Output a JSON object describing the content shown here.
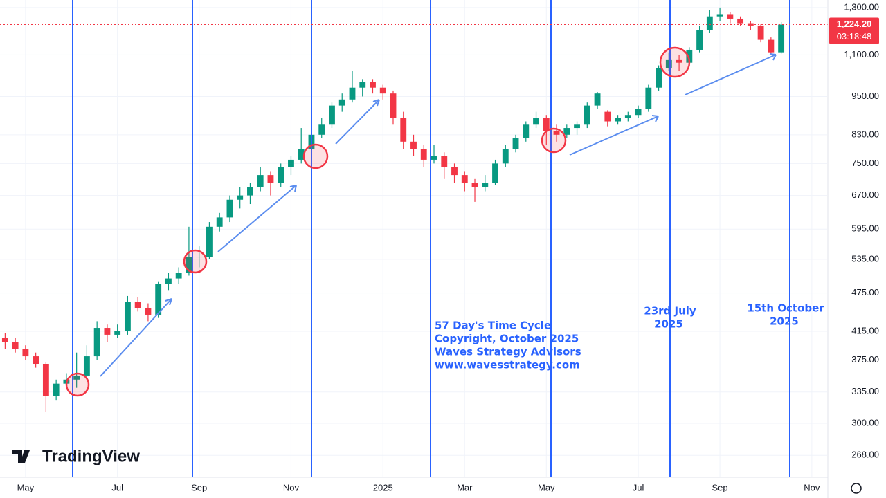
{
  "chart_data": {
    "type": "candlestick",
    "categories": [
      null,
      null,
      "May",
      null,
      null,
      null,
      null,
      null,
      null,
      null,
      null,
      "Jul",
      null,
      null,
      null,
      null,
      null,
      null,
      null,
      "Sep",
      null,
      null,
      null,
      null,
      null,
      null,
      null,
      null,
      "Nov",
      null,
      null,
      null,
      null,
      null,
      null,
      null,
      null,
      "2025",
      null,
      null,
      null,
      null,
      null,
      null,
      null,
      "Mar",
      null,
      null,
      null,
      null,
      null,
      null,
      null,
      "May",
      null,
      null,
      null,
      null,
      null,
      null,
      null,
      null,
      "Jul",
      null,
      null,
      null,
      null,
      null,
      null,
      null,
      "Sep",
      null,
      null,
      null,
      null,
      null,
      null,
      null,
      null,
      "Nov",
      null
    ],
    "candles": [
      [
        405,
        412,
        390,
        400
      ],
      [
        400,
        405,
        385,
        390
      ],
      [
        390,
        395,
        375,
        380
      ],
      [
        380,
        385,
        365,
        370
      ],
      [
        370,
        372,
        312,
        330
      ],
      [
        330,
        350,
        325,
        345
      ],
      [
        345,
        358,
        338,
        350
      ],
      [
        350,
        385,
        340,
        355
      ],
      [
        355,
        395,
        350,
        380
      ],
      [
        380,
        430,
        375,
        420
      ],
      [
        420,
        425,
        400,
        410
      ],
      [
        410,
        425,
        405,
        415
      ],
      [
        415,
        470,
        410,
        460
      ],
      [
        460,
        468,
        445,
        450
      ],
      [
        450,
        458,
        430,
        440
      ],
      [
        440,
        495,
        435,
        490
      ],
      [
        490,
        510,
        480,
        500
      ],
      [
        500,
        520,
        490,
        510
      ],
      [
        510,
        600,
        505,
        540
      ],
      [
        540,
        560,
        520,
        540
      ],
      [
        540,
        610,
        535,
        600
      ],
      [
        600,
        630,
        590,
        620
      ],
      [
        620,
        670,
        610,
        660
      ],
      [
        660,
        690,
        640,
        670
      ],
      [
        670,
        700,
        650,
        690
      ],
      [
        690,
        740,
        680,
        720
      ],
      [
        720,
        730,
        670,
        700
      ],
      [
        700,
        750,
        690,
        740
      ],
      [
        740,
        770,
        720,
        760
      ],
      [
        760,
        850,
        750,
        790
      ],
      [
        790,
        840,
        780,
        830
      ],
      [
        830,
        880,
        820,
        860
      ],
      [
        860,
        930,
        850,
        920
      ],
      [
        920,
        960,
        900,
        940
      ],
      [
        940,
        1040,
        930,
        980
      ],
      [
        980,
        1010,
        950,
        1000
      ],
      [
        1000,
        1010,
        960,
        980
      ],
      [
        980,
        990,
        940,
        960
      ],
      [
        960,
        970,
        860,
        880
      ],
      [
        880,
        900,
        790,
        810
      ],
      [
        810,
        830,
        770,
        790
      ],
      [
        790,
        800,
        740,
        760
      ],
      [
        760,
        800,
        750,
        770
      ],
      [
        770,
        780,
        710,
        740
      ],
      [
        740,
        750,
        700,
        720
      ],
      [
        720,
        730,
        680,
        700
      ],
      [
        700,
        710,
        655,
        690
      ],
      [
        690,
        720,
        680,
        700
      ],
      [
        700,
        760,
        695,
        750
      ],
      [
        750,
        800,
        740,
        790
      ],
      [
        790,
        830,
        780,
        820
      ],
      [
        820,
        870,
        810,
        860
      ],
      [
        860,
        900,
        850,
        880
      ],
      [
        880,
        890,
        800,
        840
      ],
      [
        840,
        860,
        810,
        830
      ],
      [
        830,
        860,
        820,
        850
      ],
      [
        850,
        870,
        830,
        860
      ],
      [
        860,
        930,
        850,
        920
      ],
      [
        920,
        965,
        910,
        960
      ],
      [
        900,
        905,
        855,
        870
      ],
      [
        870,
        890,
        860,
        880
      ],
      [
        880,
        900,
        870,
        890
      ],
      [
        890,
        920,
        880,
        910
      ],
      [
        910,
        990,
        900,
        980
      ],
      [
        980,
        1060,
        970,
        1050
      ],
      [
        1050,
        1110,
        1040,
        1080
      ],
      [
        1080,
        1100,
        1040,
        1070
      ],
      [
        1070,
        1130,
        1060,
        1120
      ],
      [
        1120,
        1220,
        1110,
        1200
      ],
      [
        1200,
        1290,
        1190,
        1260
      ],
      [
        1260,
        1300,
        1240,
        1270
      ],
      [
        1270,
        1280,
        1230,
        1250
      ],
      [
        1250,
        1260,
        1220,
        1230
      ],
      [
        1230,
        1240,
        1200,
        1220
      ],
      [
        1220,
        1225,
        1150,
        1160
      ],
      [
        1160,
        1170,
        1100,
        1110
      ],
      [
        1110,
        1235,
        1105,
        1224.2
      ],
      null,
      null,
      null,
      null
    ],
    "up_color": "#089981",
    "down_color": "#f23645",
    "log_scale": true,
    "grid": true,
    "ylim": [
      248,
      1335
    ],
    "yticks": [
      {
        "value": 268,
        "label": "268.00"
      },
      {
        "value": 300,
        "label": "300.00"
      },
      {
        "value": 335,
        "label": "335.00"
      },
      {
        "value": 375,
        "label": "375.00"
      },
      {
        "value": 415,
        "label": "415.00"
      },
      {
        "value": 475,
        "label": "475.00"
      },
      {
        "value": 535,
        "label": "535.00"
      },
      {
        "value": 595,
        "label": "595.00"
      },
      {
        "value": 670,
        "label": "670.00"
      },
      {
        "value": 750,
        "label": "750.00"
      },
      {
        "value": 830,
        "label": "830.00"
      },
      {
        "value": 950,
        "label": "950.00"
      },
      {
        "value": 1100,
        "label": "1,100.00"
      },
      {
        "value": 1300,
        "label": "1,300.00"
      }
    ],
    "last_price": 1224.2,
    "last_price_label": "1,224.20",
    "countdown": "03:18:48",
    "annotations": [
      "57 Day's Time Cycle",
      "Copyright, October 2025",
      "Waves Strategy Advisors",
      "www.wavesstrategy.com"
    ],
    "cycle_labels": [
      [
        "23rd July",
        "2025"
      ],
      [
        "15th October",
        "2025"
      ]
    ],
    "logo": "TradingView"
  }
}
